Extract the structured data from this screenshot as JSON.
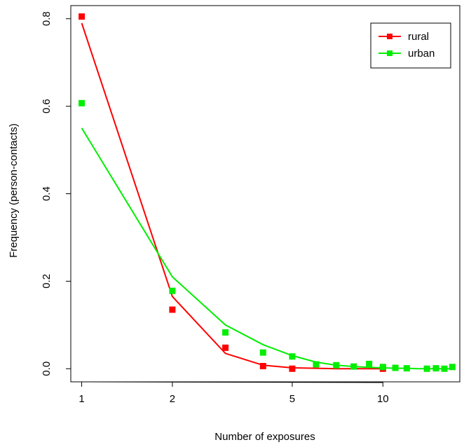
{
  "chart_data": {
    "type": "scatter",
    "title": "",
    "xlabel": "Number of exposures",
    "ylabel": "Frequency (person-contacts)",
    "x_scale": "log",
    "xlim": [
      0.92,
      18
    ],
    "ylim": [
      -0.03,
      0.83
    ],
    "x_ticks": [
      1,
      2,
      5,
      10
    ],
    "x_tick_labels": [
      "1",
      "2",
      "5",
      "10"
    ],
    "y_ticks": [
      0.0,
      0.2,
      0.4,
      0.6,
      0.8
    ],
    "y_tick_labels": [
      "0.0",
      "0.2",
      "0.4",
      "0.6",
      "0.8"
    ],
    "grid": false,
    "legend_position": "top-right",
    "series": [
      {
        "name": "rural",
        "color": "#ff0000",
        "points": {
          "x": [
            1,
            2,
            3,
            4,
            5,
            10
          ],
          "y": [
            0.805,
            0.135,
            0.048,
            0.006,
            0.0,
            0.0
          ]
        },
        "fit": {
          "x": [
            1,
            2,
            3,
            4,
            5,
            6,
            7,
            8,
            9,
            10
          ],
          "y": [
            0.79,
            0.165,
            0.035,
            0.008,
            0.002,
            0.001,
            0.0,
            0.0,
            0.0,
            0.0
          ]
        }
      },
      {
        "name": "urban",
        "color": "#00ee00",
        "points": {
          "x": [
            1,
            2,
            3,
            4,
            5,
            6,
            7,
            8,
            9,
            10,
            11,
            12,
            14,
            15,
            16,
            17
          ],
          "y": [
            0.607,
            0.178,
            0.083,
            0.037,
            0.028,
            0.01,
            0.008,
            0.005,
            0.011,
            0.004,
            0.002,
            0.001,
            0.0,
            0.001,
            0.0,
            0.004
          ]
        },
        "fit": {
          "x": [
            1,
            2,
            3,
            4,
            5,
            6,
            7,
            8,
            9,
            10,
            11,
            12,
            13,
            14,
            15,
            16,
            17
          ],
          "y": [
            0.55,
            0.21,
            0.1,
            0.055,
            0.03,
            0.015,
            0.008,
            0.005,
            0.003,
            0.002,
            0.001,
            0.001,
            0.0,
            0.0,
            0.0,
            0.0,
            0.0
          ]
        }
      }
    ]
  }
}
